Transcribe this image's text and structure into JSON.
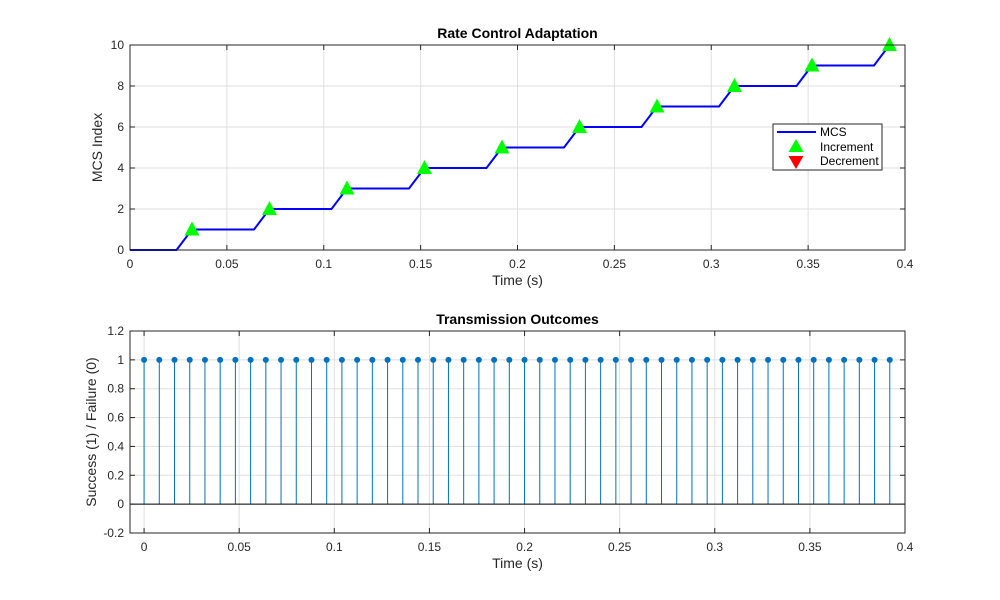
{
  "chart_data": [
    {
      "type": "line",
      "title": "Rate Control Adaptation",
      "xlabel": "Time (s)",
      "ylabel": "MCS Index",
      "xlim": [
        0,
        0.4
      ],
      "ylim": [
        0,
        10
      ],
      "xticks": [
        0,
        0.05,
        0.1,
        0.15,
        0.2,
        0.25,
        0.3,
        0.35,
        0.4
      ],
      "xtick_labels": [
        "0",
        "0.05",
        "0.1",
        "0.15",
        "0.2",
        "0.25",
        "0.3",
        "0.35",
        "0.4"
      ],
      "yticks": [
        0,
        2,
        4,
        6,
        8,
        10
      ],
      "ytick_labels": [
        "0",
        "2",
        "4",
        "6",
        "8",
        "10"
      ],
      "grid": true,
      "legend": {
        "placement": "right",
        "entries": [
          "MCS",
          "Increment",
          "Decrement"
        ]
      },
      "series": [
        {
          "name": "MCS",
          "kind": "line",
          "color": "#0000ff",
          "x": [
            0,
            0.008,
            0.016,
            0.024,
            0.032,
            0.04,
            0.048,
            0.056,
            0.064,
            0.072,
            0.08,
            0.088,
            0.096,
            0.104,
            0.112,
            0.12,
            0.128,
            0.136,
            0.144,
            0.152,
            0.16,
            0.168,
            0.176,
            0.184,
            0.192,
            0.2,
            0.208,
            0.216,
            0.224,
            0.232,
            0.24,
            0.248,
            0.256,
            0.264,
            0.272,
            0.28,
            0.288,
            0.296,
            0.304,
            0.312,
            0.32,
            0.328,
            0.336,
            0.344,
            0.352,
            0.36,
            0.368,
            0.376,
            0.384,
            0.392
          ],
          "y": [
            0,
            0,
            0,
            0,
            1,
            1,
            1,
            1,
            1,
            2,
            2,
            2,
            2,
            2,
            3,
            3,
            3,
            3,
            3,
            4,
            4,
            4,
            4,
            4,
            5,
            5,
            5,
            5,
            5,
            6,
            6,
            6,
            6,
            6,
            7,
            7,
            7,
            7,
            7,
            8,
            8,
            8,
            8,
            8,
            9,
            9,
            9,
            9,
            9,
            10
          ]
        },
        {
          "name": "Increment",
          "kind": "marker-triangle-up",
          "color": "#00ff00",
          "x": [
            0.032,
            0.072,
            0.112,
            0.152,
            0.192,
            0.232,
            0.272,
            0.312,
            0.352,
            0.392
          ],
          "y": [
            1,
            2,
            3,
            4,
            5,
            6,
            7,
            8,
            9,
            10
          ]
        },
        {
          "name": "Decrement",
          "kind": "marker-triangle-down",
          "color": "#ff0000",
          "x": [],
          "y": []
        }
      ]
    },
    {
      "type": "stem",
      "title": "Transmission Outcomes",
      "xlabel": "Time (s)",
      "ylabel": "Success (1) / Failure (0)",
      "xlim": [
        -0.0074,
        0.4
      ],
      "ylim": [
        -0.2,
        1.2
      ],
      "xticks": [
        0,
        0.05,
        0.1,
        0.15,
        0.2,
        0.25,
        0.3,
        0.35,
        0.4
      ],
      "xtick_labels": [
        "0",
        "0.05",
        "0.1",
        "0.15",
        "0.2",
        "0.25",
        "0.3",
        "0.35",
        "0.4"
      ],
      "yticks": [
        -0.2,
        0,
        0.2,
        0.4,
        0.6,
        0.8,
        1,
        1.2
      ],
      "ytick_labels": [
        "-0.2",
        "0",
        "0.2",
        "0.4",
        "0.6",
        "0.8",
        "1",
        "1.2"
      ],
      "grid": true,
      "series": [
        {
          "kind": "stem",
          "color": "#0072bd",
          "x": [
            0,
            0.008,
            0.016,
            0.024,
            0.032,
            0.04,
            0.048,
            0.056,
            0.064,
            0.072,
            0.08,
            0.088,
            0.096,
            0.104,
            0.112,
            0.12,
            0.128,
            0.136,
            0.144,
            0.152,
            0.16,
            0.168,
            0.176,
            0.184,
            0.192,
            0.2,
            0.208,
            0.216,
            0.224,
            0.232,
            0.24,
            0.248,
            0.256,
            0.264,
            0.272,
            0.28,
            0.288,
            0.296,
            0.304,
            0.312,
            0.32,
            0.328,
            0.336,
            0.344,
            0.352,
            0.36,
            0.368,
            0.376,
            0.384,
            0.392
          ],
          "y": [
            1,
            1,
            1,
            1,
            1,
            1,
            1,
            1,
            1,
            1,
            1,
            1,
            1,
            1,
            1,
            1,
            1,
            1,
            1,
            1,
            1,
            1,
            1,
            1,
            1,
            1,
            1,
            1,
            1,
            1,
            1,
            1,
            1,
            1,
            1,
            1,
            1,
            1,
            1,
            1,
            1,
            1,
            1,
            1,
            1,
            1,
            1,
            1,
            1,
            1
          ]
        }
      ]
    }
  ]
}
